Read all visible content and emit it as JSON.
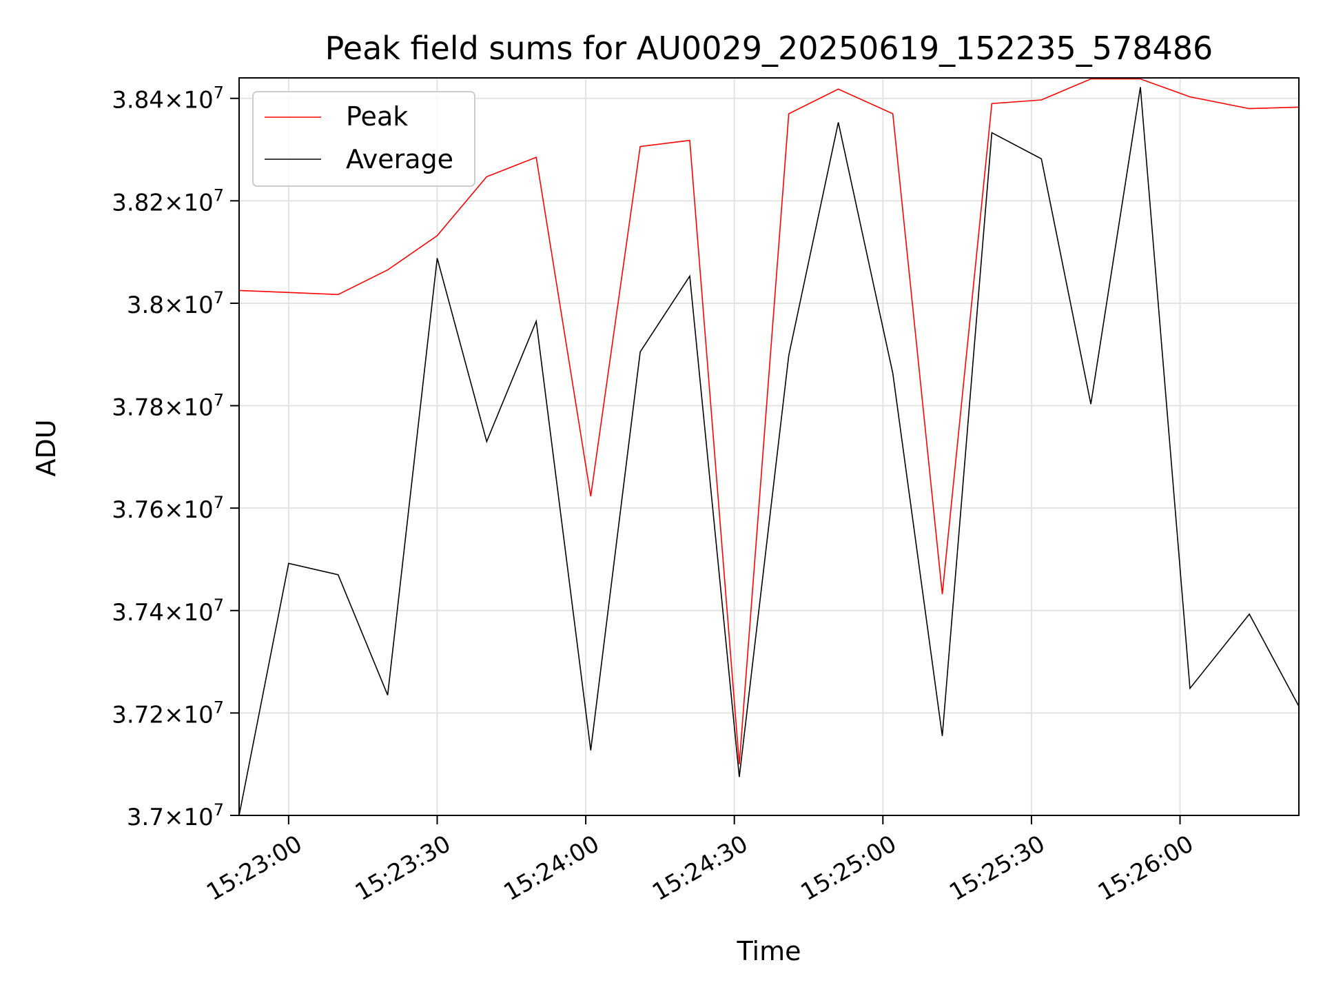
{
  "chart_data": {
    "type": "line",
    "title": "Peak field sums for AU0029_20250619_152235_578486",
    "xlabel": "Time",
    "ylabel": "ADU",
    "x_is_time": true,
    "xlim": [
      "15:22:50",
      "15:26:24"
    ],
    "ylim": [
      37000000,
      38440000
    ],
    "x_ticks": [
      "15:23:00",
      "15:23:30",
      "15:24:00",
      "15:24:30",
      "15:25:00",
      "15:25:30",
      "15:26:00"
    ],
    "y_ticks": [
      {
        "value": 37000000,
        "mantissa": "3.7",
        "exponent": "7"
      },
      {
        "value": 37200000,
        "mantissa": "3.72",
        "exponent": "7"
      },
      {
        "value": 37400000,
        "mantissa": "3.74",
        "exponent": "7"
      },
      {
        "value": 37600000,
        "mantissa": "3.76",
        "exponent": "7"
      },
      {
        "value": 37800000,
        "mantissa": "3.78",
        "exponent": "7"
      },
      {
        "value": 38000000,
        "mantissa": "3.8",
        "exponent": "7"
      },
      {
        "value": 38200000,
        "mantissa": "3.82",
        "exponent": "7"
      },
      {
        "value": 38400000,
        "mantissa": "3.84",
        "exponent": "7"
      }
    ],
    "grid": true,
    "legend_position": "upper-left",
    "x": [
      "15:22:50",
      "15:23:00",
      "15:23:10",
      "15:23:20",
      "15:23:30",
      "15:23:40",
      "15:23:50",
      "15:24:01",
      "15:24:11",
      "15:24:21",
      "15:24:31",
      "15:24:41",
      "15:24:51",
      "15:25:02",
      "15:25:12",
      "15:25:22",
      "15:25:32",
      "15:25:42",
      "15:25:52",
      "15:26:02",
      "15:26:14",
      "15:26:24"
    ],
    "series": [
      {
        "name": "Peak",
        "color": "#ff0000",
        "values": [
          38025000,
          38021000,
          38017000,
          38065000,
          38132000,
          38247000,
          38285000,
          37623000,
          38306000,
          38318000,
          37100000,
          38370000,
          38418000,
          38370000,
          37432000,
          38390000,
          38397000,
          38438000,
          38438000,
          38403000,
          38380000,
          38383000
        ]
      },
      {
        "name": "Average",
        "color": "#000000",
        "values": [
          37000000,
          37492000,
          37470000,
          37235000,
          38088000,
          37730000,
          37965000,
          37127000,
          37905000,
          38053000,
          37075000,
          37898000,
          38353000,
          37863000,
          37155000,
          38333000,
          38282000,
          37803000,
          38422000,
          37248000,
          37393000,
          37213000
        ]
      }
    ]
  }
}
